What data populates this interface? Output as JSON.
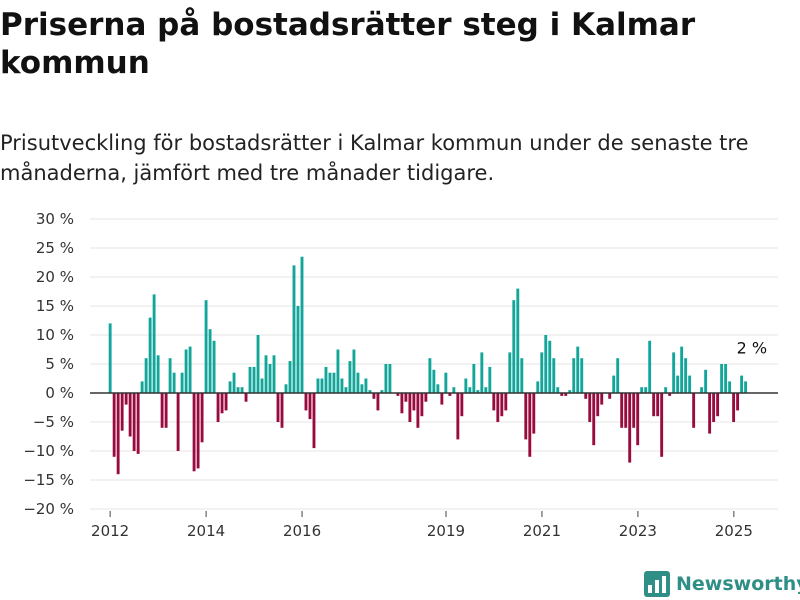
{
  "header": {
    "title": "Priserna på bostadsrätter steg i Kalmar kommun",
    "subtitle": "Prisutveckling för bostadsrätter i Kalmar kommun under de senaste tre månaderna, jämfört med tre månader tidigare."
  },
  "brand": {
    "name": "Newsworthy",
    "icon": "newsworthy-logo-icon"
  },
  "colors": {
    "positive": "#12a59a",
    "negative": "#990a3f",
    "grid": "#e4e4e4",
    "zero": "#333333"
  },
  "chart_data": {
    "type": "bar",
    "x_start": 2012.0,
    "x_step": 0.0833,
    "values": [
      12,
      -11,
      -14,
      -6.5,
      -2,
      -7.5,
      -10,
      -10.5,
      2,
      6,
      13,
      17,
      6.5,
      -6,
      -6,
      6,
      3.5,
      -10,
      3.5,
      7.5,
      8,
      -13.5,
      -13,
      -8.5,
      16,
      11,
      9,
      -5,
      -3.5,
      -3,
      2,
      3.5,
      1,
      1,
      -1.5,
      4.5,
      4.5,
      10,
      2.5,
      6.5,
      5,
      6.5,
      -5,
      -6,
      1.5,
      5.5,
      22,
      15,
      23.5,
      -3,
      -4.5,
      -9.5,
      2.5,
      2.5,
      4.5,
      3.5,
      3.5,
      7.5,
      2.5,
      1,
      5.5,
      7.5,
      3.5,
      1.5,
      2.5,
      0.5,
      -1,
      -3,
      0.5,
      5,
      5,
      0,
      -0.5,
      -3.5,
      -1.5,
      -5,
      -3,
      -6,
      -4,
      -1.5,
      6,
      4,
      1.5,
      -2,
      3.5,
      -0.5,
      1,
      -8,
      -4,
      2.5,
      1,
      5,
      0.5,
      7,
      1,
      4.5,
      -3,
      -5,
      -4,
      -3,
      7,
      16,
      18,
      6,
      -8,
      -11,
      -7,
      2,
      7,
      10,
      9,
      6,
      1,
      -0.5,
      -0.5,
      0.5,
      6,
      8,
      6,
      -1,
      -5,
      -9,
      -4,
      -2,
      0,
      -1,
      3,
      6,
      -6,
      -6,
      -12,
      -6,
      -9,
      1,
      1,
      9,
      -4,
      -4,
      -11,
      1,
      -0.5,
      7,
      3,
      8,
      6,
      3,
      -6,
      0,
      1,
      4,
      -7,
      -5,
      -4,
      5,
      5,
      2,
      -5,
      -3,
      3,
      2
    ],
    "x_ticks": [
      2012,
      2014,
      2016,
      2019,
      2021,
      2023,
      2025
    ],
    "x_tick_labels": [
      "2012",
      "2014",
      "2016",
      "2019",
      "2021",
      "2023",
      "2025"
    ],
    "xlim": [
      2011.58,
      2025.92
    ],
    "y_ticks": [
      30,
      25,
      20,
      15,
      10,
      5,
      0,
      -5,
      -10,
      -15,
      -20
    ],
    "y_tick_labels": [
      "30 %",
      "25 %",
      "20 %",
      "15 %",
      "10 %",
      "5 %",
      "0 %",
      "−5 %",
      "−10 %",
      "−15 %",
      "−20 %"
    ],
    "ylim": [
      -20,
      30
    ],
    "grid": true,
    "annotation": {
      "text": "2 %",
      "x": 2025.5,
      "y": 2
    }
  }
}
